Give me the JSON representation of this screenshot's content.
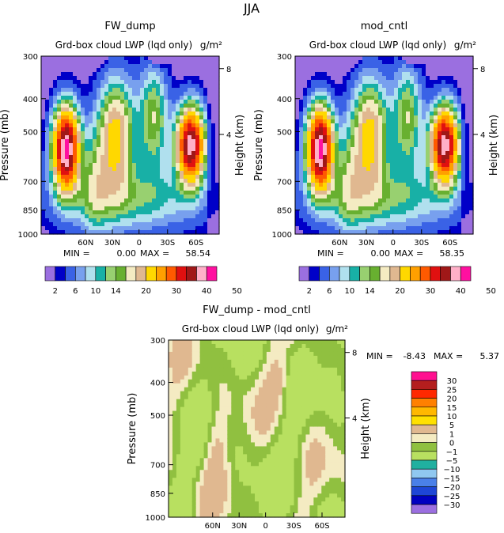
{
  "figure_title": "JJA",
  "chart_data": [
    {
      "type": "heatmap",
      "title": "FW_dump",
      "subtitle": "Grd-box cloud LWP (lqd only)",
      "units": "g/m²",
      "ylabel": "Pressure (mb)",
      "y2label": "Height (km)",
      "x_ticks": [
        "60N",
        "30N",
        "0",
        "30S",
        "60S"
      ],
      "y_ticks": [
        "300",
        "400",
        "500",
        "700",
        "850",
        "1000"
      ],
      "y2_ticks": [
        "8",
        "4"
      ],
      "min_label": "MIN =",
      "min_value": "0.00",
      "max_label": "MAX =",
      "max_value": "58.54",
      "ylim": [
        1000,
        300
      ]
    },
    {
      "type": "heatmap",
      "title": "mod_cntl",
      "subtitle": "Grd-box cloud LWP (lqd only)",
      "units": "g/m²",
      "ylabel": "Pressure (mb)",
      "y2label": "Height (km)",
      "x_ticks": [
        "60N",
        "30N",
        "0",
        "30S",
        "60S"
      ],
      "y_ticks": [
        "300",
        "400",
        "500",
        "700",
        "850",
        "1000"
      ],
      "y2_ticks": [
        "8",
        "4"
      ],
      "min_label": "MIN =",
      "min_value": "0.00",
      "max_label": "MAX =",
      "max_value": "58.35",
      "ylim": [
        1000,
        300
      ]
    },
    {
      "type": "heatmap",
      "title": "FW_dump - mod_cntl",
      "subtitle": "Grd-box cloud LWP (lqd only)",
      "units": "g/m²",
      "ylabel": "Pressure (mb)",
      "y2label": "Height (km)",
      "x_ticks": [
        "60N",
        "30N",
        "0",
        "30S",
        "60S"
      ],
      "y_ticks": [
        "300",
        "400",
        "500",
        "700",
        "850",
        "1000"
      ],
      "y2_ticks": [
        "8",
        "4"
      ],
      "min_label": "MIN =",
      "min_value": "-8.43",
      "max_label": "MAX =",
      "max_value": "5.37",
      "ylim": [
        1000,
        300
      ]
    }
  ],
  "colorbar_top": {
    "colors": [
      "#9b6fe0",
      "#0000c8",
      "#3a62e6",
      "#78a0ee",
      "#b0e0ee",
      "#18b0a6",
      "#98d070",
      "#68b030",
      "#f4ebc2",
      "#e0b890",
      "#ffd800",
      "#ffa000",
      "#ff5a00",
      "#e01010",
      "#a01818",
      "#ffb0c8",
      "#ff10a0"
    ],
    "labels": [
      "2",
      "6",
      "10",
      "14",
      "20",
      "30",
      "40",
      "50"
    ]
  },
  "colorbar_diff": {
    "colors": [
      "#ff1090",
      "#b41e1e",
      "#ff2800",
      "#ff8000",
      "#ffb800",
      "#ffe000",
      "#e0b890",
      "#f4ebc2",
      "#90c040",
      "#b8e060",
      "#20b0a0",
      "#90c8f0",
      "#4a80e8",
      "#1e46d6",
      "#0000c0",
      "#9b6fe0"
    ],
    "labels": [
      "30",
      "25",
      "20",
      "15",
      "10",
      "5",
      "1",
      "0",
      "−1",
      "−5",
      "−10",
      "−15",
      "−20",
      "−25",
      "−30"
    ]
  }
}
